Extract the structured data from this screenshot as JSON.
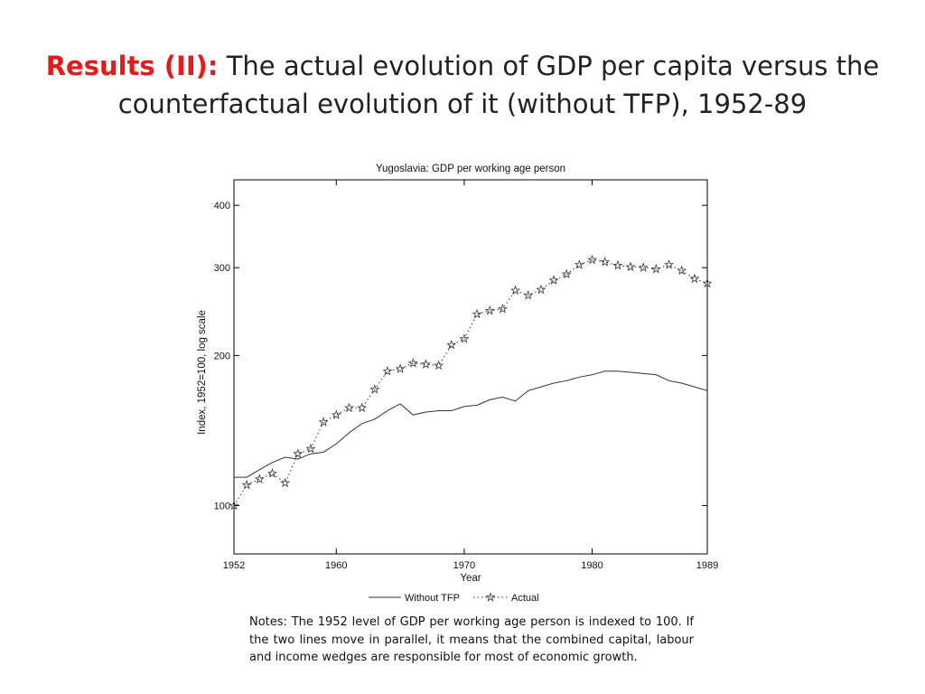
{
  "slide": {
    "title_prefix": "Results (II):",
    "title_rest": "The actual evolution of GDP per capita versus the counterfactual evolution of it (without TFP), 1952-89",
    "notes": "Notes: The 1952 level of GDP per working age person is indexed to 100. If the two lines move in parallel, it means that the combined capital, labour and income wedges are responsible for most of economic growth."
  },
  "chart_data": {
    "type": "line",
    "title": "Yugoslavia: GDP per working age person",
    "xlabel": "Year",
    "ylabel": "Index, 1952=100, log scale",
    "xlim": [
      1952,
      1989
    ],
    "ylim": [
      80,
      450
    ],
    "yscale": "log",
    "x_ticks": [
      1952,
      1960,
      1970,
      1980,
      1989
    ],
    "y_ticks": [
      100,
      200,
      300,
      400
    ],
    "grid": false,
    "legend_position": "bottom-center",
    "x": [
      1952,
      1953,
      1954,
      1955,
      1956,
      1957,
      1958,
      1959,
      1960,
      1961,
      1962,
      1963,
      1964,
      1965,
      1966,
      1967,
      1968,
      1969,
      1970,
      1971,
      1972,
      1973,
      1974,
      1975,
      1976,
      1977,
      1978,
      1979,
      1980,
      1981,
      1982,
      1983,
      1984,
      1985,
      1986,
      1987,
      1988,
      1989
    ],
    "series": [
      {
        "name": "Without TFP",
        "style": "solid",
        "marker": "none",
        "color": "#333333",
        "values": [
          114,
          114,
          118,
          122,
          125,
          124,
          127,
          128,
          133,
          140,
          146,
          149,
          155,
          160,
          152,
          154,
          155,
          155,
          158,
          159,
          163,
          165,
          162,
          170,
          173,
          176,
          178,
          181,
          183,
          186,
          186,
          185,
          184,
          183,
          178,
          176,
          173,
          170
        ]
      },
      {
        "name": "Actual",
        "style": "dotted",
        "marker": "star",
        "color": "#333333",
        "values": [
          100,
          110,
          113,
          116,
          111,
          127,
          130,
          147,
          152,
          157,
          157,
          171,
          186,
          188,
          193,
          192,
          191,
          210,
          216,
          242,
          246,
          248,
          270,
          264,
          271,
          283,
          291,
          304,
          311,
          308,
          303,
          301,
          300,
          298,
          304,
          296,
          285,
          279
        ]
      }
    ]
  }
}
